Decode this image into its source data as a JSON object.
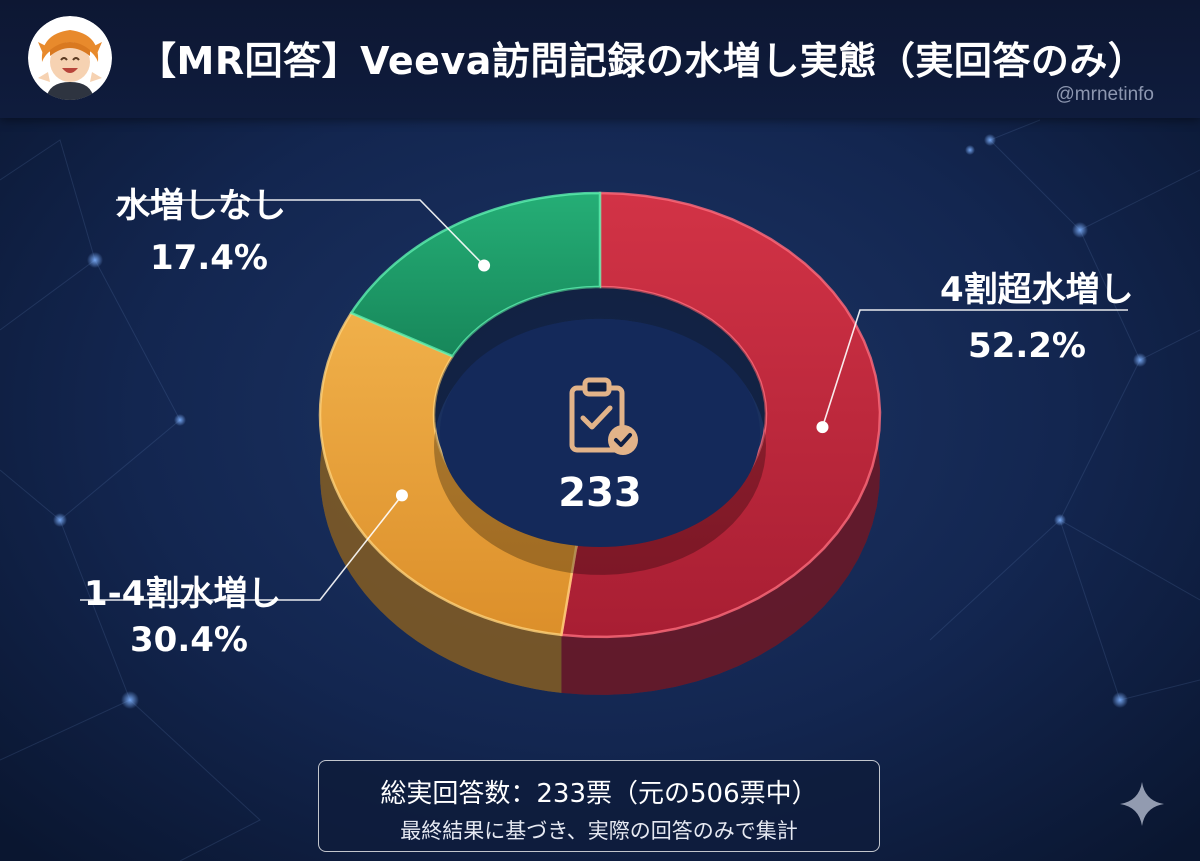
{
  "header": {
    "title": "【MR回答】Veeva訪問記録の水増し実態（実回答のみ）",
    "handle": "@mrnetinfo"
  },
  "chart_data": {
    "type": "pie",
    "style": "donut",
    "categories": [
      "4割超水増し",
      "1-4割水増し",
      "水増しなし"
    ],
    "values": [
      52.2,
      30.4,
      17.4
    ],
    "value_labels": [
      "52.2%",
      "30.4%",
      "17.4%"
    ],
    "colors": [
      "#c2283d",
      "#e8a23a",
      "#1f9e6a"
    ],
    "center_value": "233"
  },
  "note": {
    "main": "総実回答数：233票（元の506票中）",
    "sub": "最終結果に基づき、実際の回答のみで集計"
  },
  "icons": {
    "avatar": "avatar-icon",
    "center": "clipboard-check-icon",
    "corner": "sparkle-icon"
  }
}
